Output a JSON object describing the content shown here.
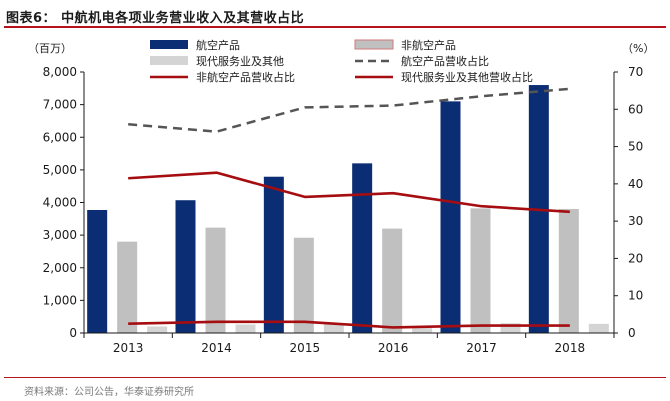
{
  "figure": {
    "title": "图表6：    中航机电各项业务营业收入及其营收占比",
    "source": "资料来源：公司公告，华泰证券研究所"
  },
  "chart_data": {
    "type": "bar",
    "categories": [
      "2013",
      "2014",
      "2015",
      "2016",
      "2017",
      "2018"
    ],
    "left_axis": {
      "label": "（百万）",
      "ylim": [
        0,
        8000
      ],
      "ticks": [
        "0",
        "1,000",
        "2,000",
        "3,000",
        "4,000",
        "5,000",
        "6,000",
        "7,000",
        "8,000"
      ]
    },
    "right_axis": {
      "label": "（%）",
      "ylim": [
        0,
        70
      ],
      "ticks": [
        "0",
        "10",
        "20",
        "30",
        "40",
        "50",
        "60",
        "70"
      ]
    },
    "bar_series": [
      {
        "name": "航空产品",
        "axis": "left",
        "color": "#0b2d74",
        "values": [
          3770,
          4070,
          4790,
          5200,
          7100,
          7600
        ]
      },
      {
        "name": "非航空产品",
        "axis": "left",
        "color": "#c0c0c0",
        "values": [
          2800,
          3230,
          2920,
          3200,
          3820,
          3800
        ]
      },
      {
        "name": "现代服务业及其他",
        "axis": "left",
        "color": "#d4d4d4",
        "values": [
          200,
          260,
          300,
          150,
          300,
          280
        ]
      }
    ],
    "line_series": [
      {
        "name": "航空产品营收占比",
        "axis": "right",
        "color": "#555555",
        "style": "dashed",
        "values": [
          56,
          54,
          60.5,
          61,
          63.5,
          65.5
        ]
      },
      {
        "name": "非航空产品营收占比",
        "axis": "right",
        "color": "#a50d10",
        "style": "solid",
        "values": [
          41.5,
          43,
          36.5,
          37.5,
          34,
          32.5
        ]
      },
      {
        "name": "现代服务业及其他营收占比",
        "axis": "right",
        "color": "#a50d10",
        "style": "solid",
        "values": [
          2.5,
          3,
          3,
          1.5,
          2,
          2
        ]
      }
    ],
    "legend_placement": "top",
    "grid": false
  }
}
